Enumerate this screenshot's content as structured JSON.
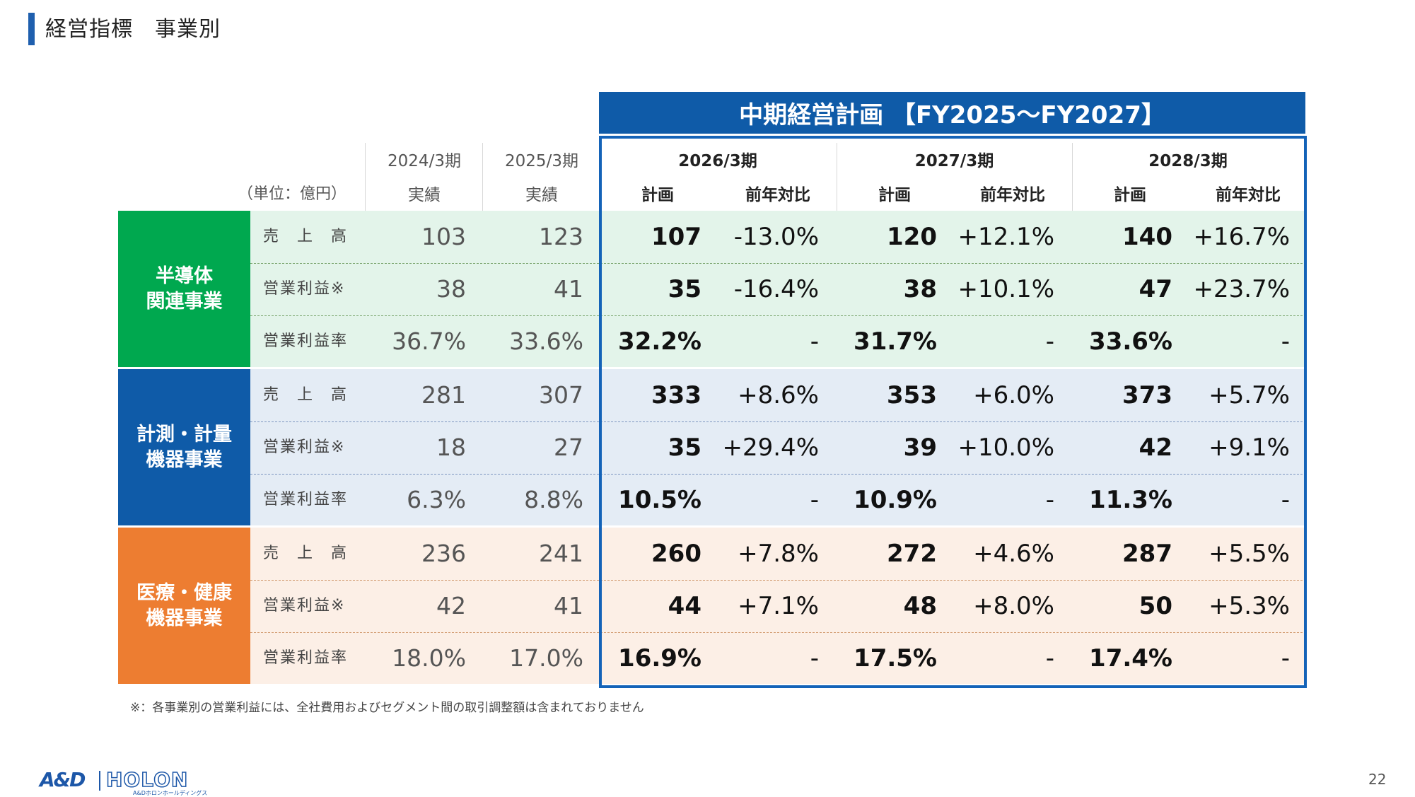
{
  "page": {
    "title": "経営指標　事業別",
    "plan_banner": "中期経営計画 【FY2025～FY2027】",
    "unit_label": "（単位：億円）",
    "footnote": "※：各事業別の営業利益には、全社費用およびセグメント間の取引調整額は含まれておりません",
    "page_number": "22"
  },
  "columns": {
    "fy2024": {
      "period": "2024/3期",
      "kind": "実績"
    },
    "fy2025": {
      "period": "2025/3期",
      "kind": "実績"
    },
    "fy2026": {
      "period": "2026/3期",
      "plan": "計画",
      "yoy": "前年対比"
    },
    "fy2027": {
      "period": "2027/3期",
      "plan": "計画",
      "yoy": "前年対比"
    },
    "fy2028": {
      "period": "2028/3期",
      "plan": "計画",
      "yoy": "前年対比"
    }
  },
  "segments": [
    {
      "name_line1": "半導体",
      "name_line2": "関連事業",
      "color": "#00a84f",
      "band_color": "#e3f4ea",
      "rows": [
        {
          "metric": "売　上　高",
          "fy2024": "103",
          "fy2025": "123",
          "p2026": "107",
          "y2026": "-13.0%",
          "p2027": "120",
          "y2027": "+12.1%",
          "p2028": "140",
          "y2028": "+16.7%"
        },
        {
          "metric": "営業利益※",
          "fy2024": "38",
          "fy2025": "41",
          "p2026": "35",
          "y2026": "-16.4%",
          "p2027": "38",
          "y2027": "+10.1%",
          "p2028": "47",
          "y2028": "+23.7%"
        },
        {
          "metric": "営業利益率",
          "fy2024": "36.7%",
          "fy2025": "33.6%",
          "p2026": "32.2%",
          "y2026": "-",
          "p2027": "31.7%",
          "y2027": "-",
          "p2028": "33.6%",
          "y2028": "-"
        }
      ]
    },
    {
      "name_line1": "計測・計量",
      "name_line2": "機器事業",
      "color": "#0f5ba8",
      "band_color": "#e4ecf5",
      "rows": [
        {
          "metric": "売　上　高",
          "fy2024": "281",
          "fy2025": "307",
          "p2026": "333",
          "y2026": "+8.6%",
          "p2027": "353",
          "y2027": "+6.0%",
          "p2028": "373",
          "y2028": "+5.7%"
        },
        {
          "metric": "営業利益※",
          "fy2024": "18",
          "fy2025": "27",
          "p2026": "35",
          "y2026": "+29.4%",
          "p2027": "39",
          "y2027": "+10.0%",
          "p2028": "42",
          "y2028": "+9.1%"
        },
        {
          "metric": "営業利益率",
          "fy2024": "6.3%",
          "fy2025": "8.8%",
          "p2026": "10.5%",
          "y2026": "-",
          "p2027": "10.9%",
          "y2027": "-",
          "p2028": "11.3%",
          "y2028": "-"
        }
      ]
    },
    {
      "name_line1": "医療・健康",
      "name_line2": "機器事業",
      "color": "#ed7d31",
      "band_color": "#fcefe6",
      "rows": [
        {
          "metric": "売　上　高",
          "fy2024": "236",
          "fy2025": "241",
          "p2026": "260",
          "y2026": "+7.8%",
          "p2027": "272",
          "y2027": "+4.6%",
          "p2028": "287",
          "y2028": "+5.5%"
        },
        {
          "metric": "営業利益※",
          "fy2024": "42",
          "fy2025": "41",
          "p2026": "44",
          "y2026": "+7.1%",
          "p2027": "48",
          "y2027": "+8.0%",
          "p2028": "50",
          "y2028": "+5.3%"
        },
        {
          "metric": "営業利益率",
          "fy2024": "18.0%",
          "fy2025": "17.0%",
          "p2026": "16.9%",
          "y2026": "-",
          "p2027": "17.5%",
          "y2027": "-",
          "p2028": "17.4%",
          "y2028": "-"
        }
      ]
    }
  ],
  "footer": {
    "logo_and": "A&D",
    "logo_holon": "HOLON",
    "logo_sub": "A&Dホロンホールディングス"
  }
}
